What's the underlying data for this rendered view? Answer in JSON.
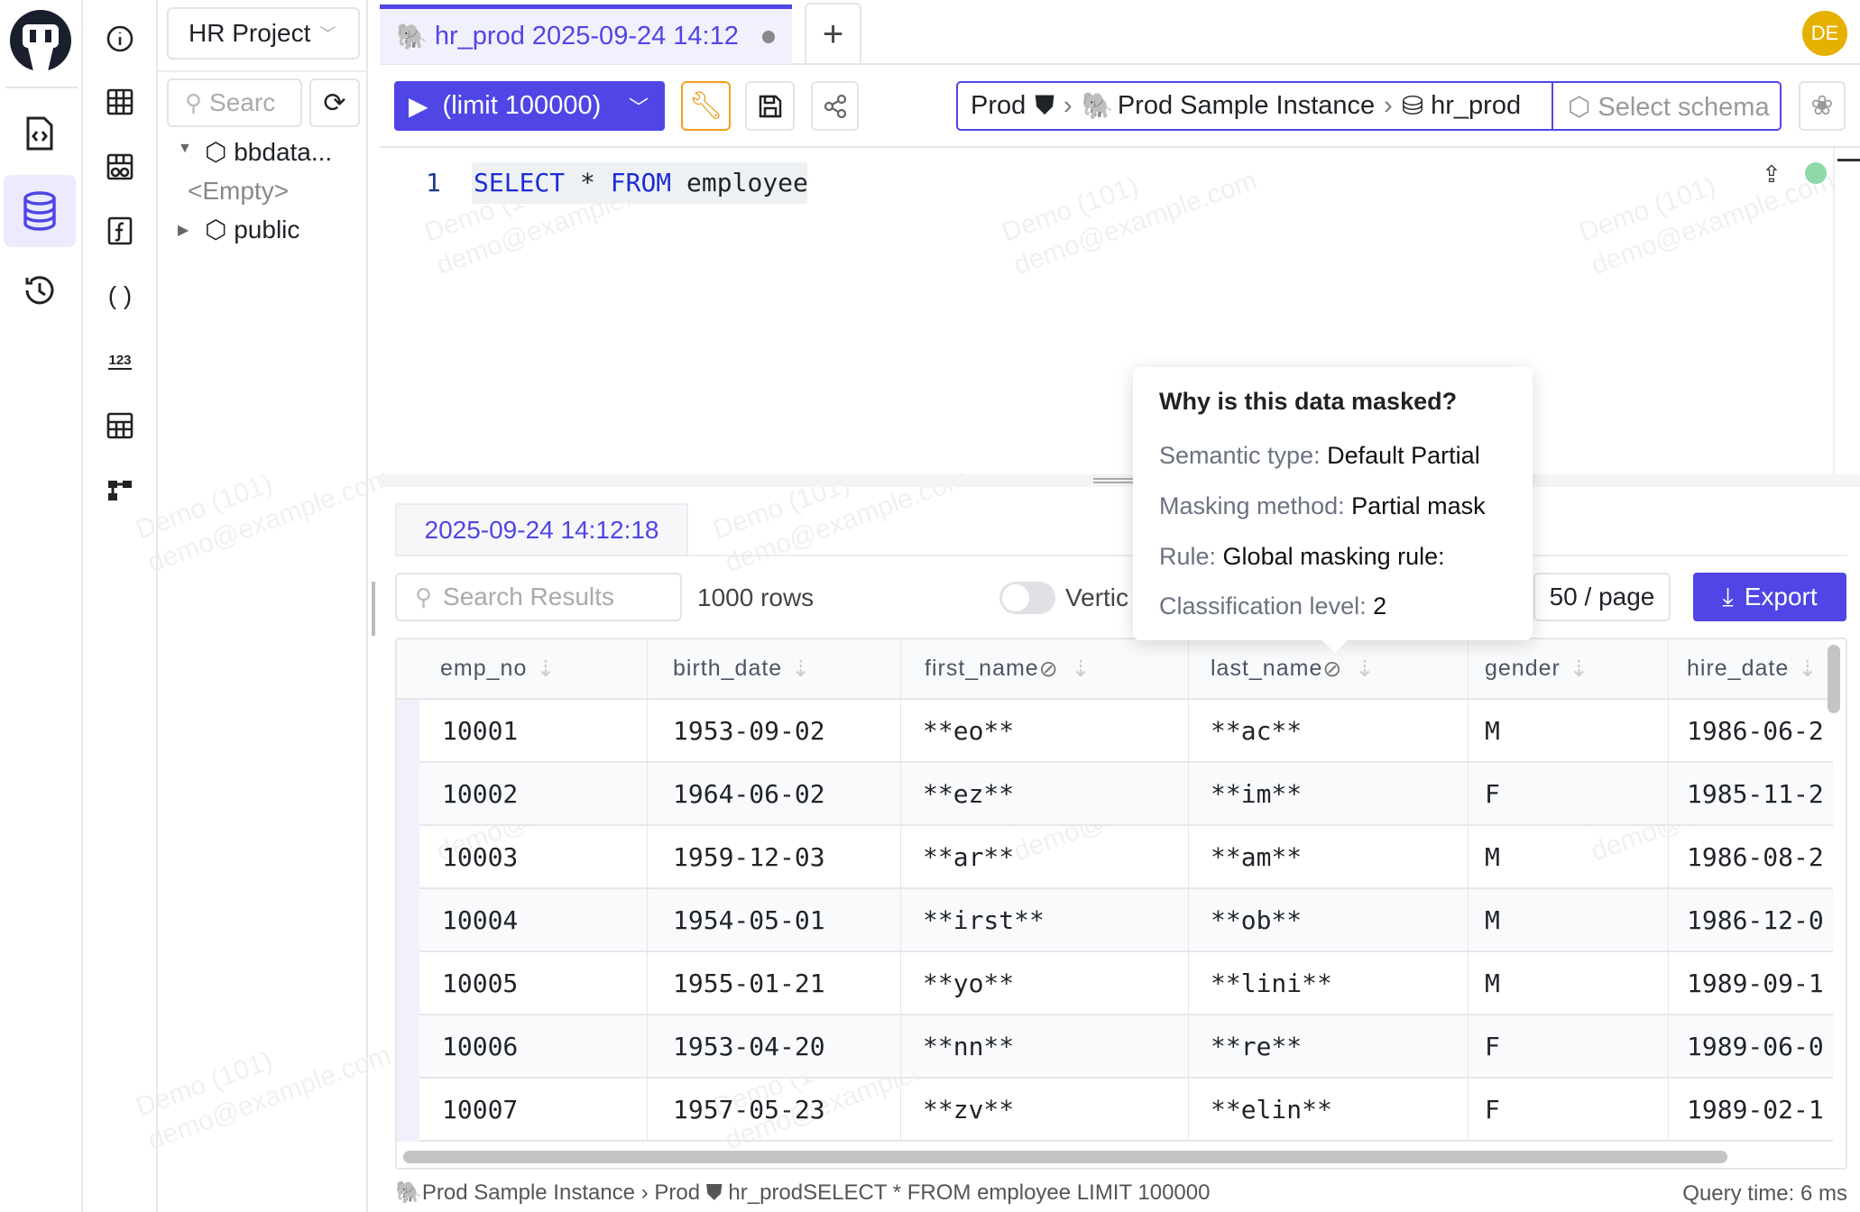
{
  "project": {
    "name": "HR Project"
  },
  "tab": {
    "title": "hr_prod 2025-09-24 14:12",
    "add": "+"
  },
  "avatar": {
    "initials": "DE",
    "color": "#e6b000"
  },
  "tree": {
    "search_placeholder": "Searc",
    "items": [
      {
        "label": "bbdata..."
      },
      {
        "label": "<Empty>"
      },
      {
        "label": "public"
      }
    ]
  },
  "toolbar": {
    "run_label": "(limit 100000)",
    "accent": "#4f46e5"
  },
  "breadcrumb": {
    "env": "Prod",
    "instance": "Prod Sample Instance",
    "database": "hr_prod",
    "schema_placeholder": "Select schema"
  },
  "editor": {
    "line_number": "1",
    "kw1": "SELECT",
    "op": "*",
    "kw2": "FROM",
    "table": "employee"
  },
  "results": {
    "tab": "2025-09-24 14:12:18",
    "search_placeholder": "Search Results",
    "rows_count": "1000 rows",
    "vertical_label": "Vertic",
    "page_size": "50 / page",
    "export": "Export"
  },
  "tooltip": {
    "title": "Why is this data masked?",
    "semantic_label": "Semantic type:",
    "semantic_value": "Default Partial",
    "method_label": "Masking method:",
    "method_value": "Partial mask",
    "rule_label": "Rule:",
    "rule_value": "Global masking rule:",
    "level_label": "Classification level:",
    "level_value": "2"
  },
  "table": {
    "columns": [
      "emp_no",
      "birth_date",
      "first_name",
      "last_name",
      "gender",
      "hire_date"
    ],
    "rows": [
      [
        "10001",
        "1953-09-02",
        "**eo**",
        "**ac**",
        "M",
        "1986-06-2"
      ],
      [
        "10002",
        "1964-06-02",
        "**ez**",
        "**im**",
        "F",
        "1985-11-2"
      ],
      [
        "10003",
        "1959-12-03",
        "**ar**",
        "**am**",
        "M",
        "1986-08-2"
      ],
      [
        "10004",
        "1954-05-01",
        "**irst**",
        "**ob**",
        "M",
        "1986-12-0"
      ],
      [
        "10005",
        "1955-01-21",
        "**yo**",
        "**lini**",
        "M",
        "1989-09-1"
      ],
      [
        "10006",
        "1953-04-20",
        "**nn**",
        "**re**",
        "F",
        "1989-06-0"
      ],
      [
        "10007",
        "1957-05-23",
        "**zv**",
        "**elin**",
        "F",
        "1989-02-1"
      ]
    ]
  },
  "status": {
    "instance": "Prod Sample Instance",
    "env": "Prod",
    "database": "hr_prod",
    "query": "SELECT * FROM employee LIMIT 100000",
    "query_time": "Query time: 6 ms"
  },
  "watermark": {
    "line1": "Demo (101)",
    "line2": "demo@example.com"
  }
}
